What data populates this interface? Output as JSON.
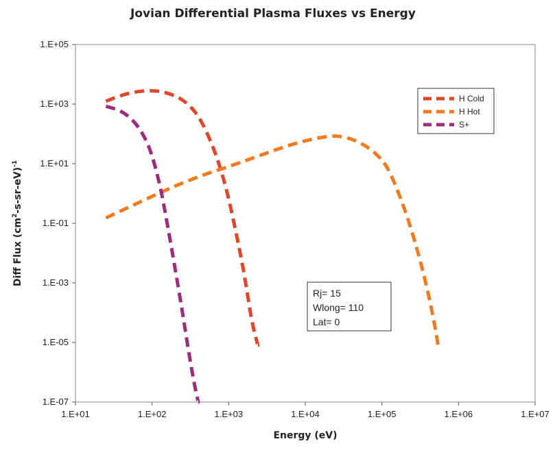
{
  "chart_data": {
    "type": "line",
    "title": "Jovian Differential Plasma Fluxes vs Energy",
    "xlabel": "Energy (eV)",
    "ylabel_main": "Diff Flux (cm",
    "ylabel_sup1": "2",
    "ylabel_mid": "-s-sr-eV)",
    "ylabel_sup2": "-1",
    "x_scale": "log",
    "y_scale": "log",
    "xlim": [
      10,
      10000000
    ],
    "ylim": [
      1e-07,
      100000
    ],
    "x_ticks": [
      10,
      100,
      1000,
      10000,
      100000,
      1000000,
      10000000
    ],
    "x_tick_labels": [
      "1.E+01",
      "1.E+02",
      "1.E+03",
      "1.E+04",
      "1.E+05",
      "1.E+06",
      "1.E+07"
    ],
    "y_ticks": [
      100000,
      1000,
      10,
      0.1,
      0.001,
      1e-05,
      1e-07
    ],
    "y_tick_labels": [
      "1.E+05",
      "1.E+03",
      "1.E+01",
      "1.E-01",
      "1.E-03",
      "1.E-05",
      "1.E-07"
    ],
    "grid": false,
    "legend_position": "top-right",
    "series": [
      {
        "name": "H Cold",
        "color": "#e0462a",
        "x": [
          25,
          40,
          60,
          100,
          150,
          250,
          400,
          600,
          800,
          1000,
          1300,
          1600,
          2000,
          2400
        ],
        "y": [
          1250,
          2000,
          2600,
          2900,
          2500,
          1500,
          450,
          50,
          6,
          0.7,
          0.03,
          0.002,
          5e-05,
          8e-06
        ]
      },
      {
        "name": "H Hot",
        "color": "#f47a20",
        "x": [
          25,
          50,
          100,
          200,
          500,
          1000,
          2000,
          5000,
          10000,
          20000,
          30000,
          50000,
          80000,
          120000,
          200000,
          300000,
          400000,
          500000,
          550000
        ],
        "y": [
          0.15,
          0.35,
          0.8,
          1.8,
          4.5,
          8,
          15,
          35,
          60,
          85,
          85,
          55,
          25,
          8,
          0.3,
          0.01,
          0.0005,
          3e-05,
          6e-06
        ]
      },
      {
        "name": "S+",
        "color": "#9b2d7c",
        "x": [
          25,
          40,
          60,
          80,
          100,
          130,
          160,
          200,
          250,
          300,
          350,
          400
        ],
        "y": [
          850,
          600,
          250,
          80,
          20,
          1.5,
          0.08,
          0.003,
          0.0001,
          5e-06,
          5e-07,
          1e-07
        ]
      }
    ],
    "annotation": [
      "Rj= 15",
      "Wlong= 110",
      "Lat= 0"
    ]
  }
}
